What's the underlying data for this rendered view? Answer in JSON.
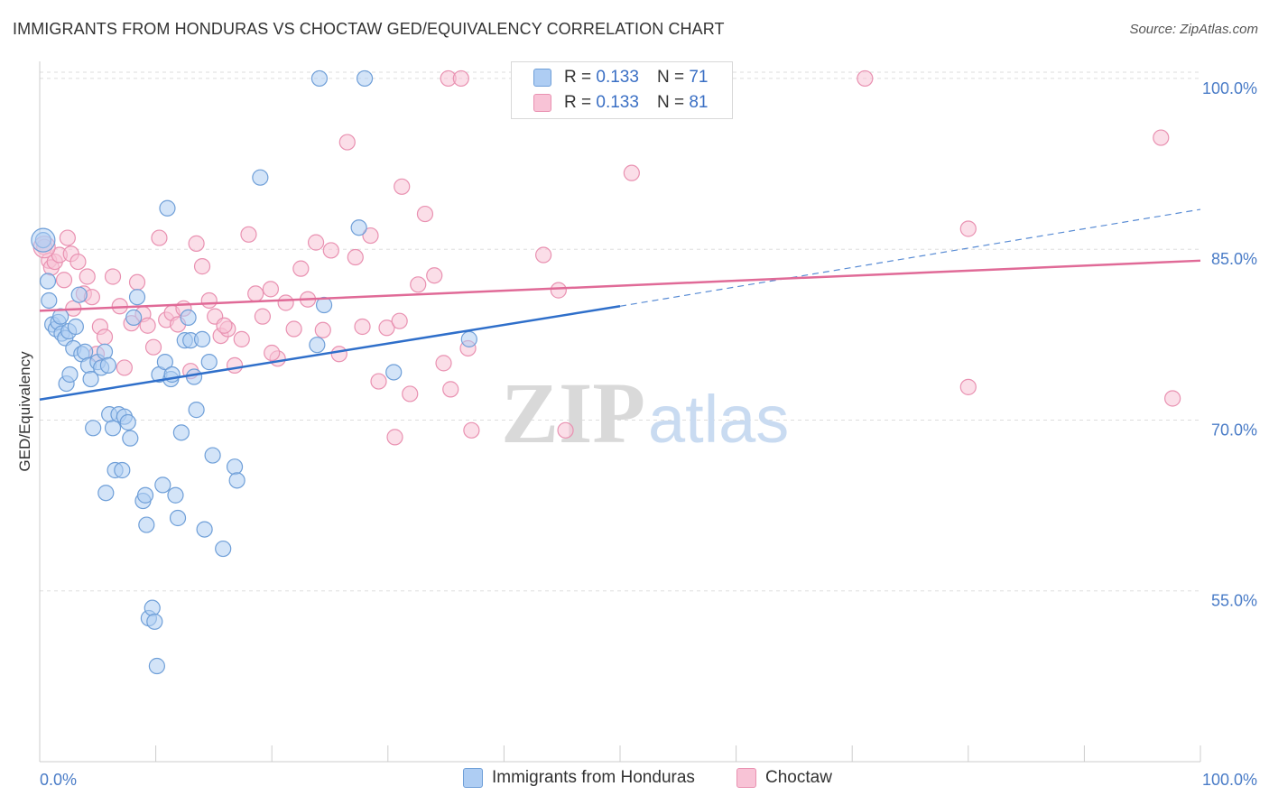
{
  "header": {
    "title": "IMMIGRANTS FROM HONDURAS VS CHOCTAW GED/EQUIVALENCY CORRELATION CHART",
    "source": "Source: ZipAtlas.com"
  },
  "legend_top": {
    "rows": [
      {
        "r_label": "R =",
        "r_value": "0.133",
        "n_label": "N =",
        "n_value": "71"
      },
      {
        "r_label": "R =",
        "r_value": "0.133",
        "n_label": "N =",
        "n_value": "81"
      }
    ]
  },
  "watermark": {
    "zip": "ZIP",
    "atlas": "atlas"
  },
  "colors": {
    "blue_fill": "#aecdf3",
    "blue_stroke": "#6f9fd8",
    "blue_line": "#2f6fca",
    "pink_fill": "#f8c3d6",
    "pink_stroke": "#e991b1",
    "pink_line": "#e06a97",
    "grid": "#dddddd",
    "tick_text": "#4a7cc7"
  },
  "chart_data": {
    "type": "scatter",
    "title": "IMMIGRANTS FROM HONDURAS VS CHOCTAW GED/EQUIVALENCY CORRELATION CHART",
    "xlabel": "",
    "ylabel": "GED/Equivalency",
    "xlim": [
      0,
      100
    ],
    "ylim": [
      40,
      101.5
    ],
    "x_tick_labels": [
      "0.0%",
      "100.0%"
    ],
    "y_ticks": [
      100,
      85,
      70,
      55
    ],
    "y_tick_labels": [
      "100.0%",
      "85.0%",
      "70.0%",
      "55.0%"
    ],
    "legend": [
      "Immigrants from Honduras",
      "Choctaw"
    ],
    "series": [
      {
        "name": "Immigrants from Honduras",
        "R": 0.133,
        "N": 71,
        "trend": {
          "x": [
            0,
            50
          ],
          "y": [
            71.8,
            80.0
          ],
          "dashed_extension_to_x": 100,
          "dashed_y_end": 88.5
        },
        "points": [
          [
            0.3,
            85.8
          ],
          [
            0.7,
            82.2
          ],
          [
            0.8,
            80.5
          ],
          [
            1.1,
            78.4
          ],
          [
            1.4,
            78.0
          ],
          [
            1.6,
            78.6
          ],
          [
            1.8,
            79.1
          ],
          [
            1.9,
            77.6
          ],
          [
            2.2,
            77.2
          ],
          [
            2.5,
            77.8
          ],
          [
            2.3,
            73.2
          ],
          [
            2.6,
            74.0
          ],
          [
            2.9,
            76.3
          ],
          [
            3.1,
            78.2
          ],
          [
            3.4,
            81.0
          ],
          [
            3.6,
            75.8
          ],
          [
            3.9,
            76.0
          ],
          [
            4.2,
            74.8
          ],
          [
            4.4,
            73.6
          ],
          [
            4.6,
            69.3
          ],
          [
            5.0,
            75.1
          ],
          [
            5.3,
            74.6
          ],
          [
            5.6,
            76.0
          ],
          [
            5.9,
            74.8
          ],
          [
            6.0,
            70.5
          ],
          [
            6.3,
            69.3
          ],
          [
            6.5,
            65.6
          ],
          [
            6.8,
            70.5
          ],
          [
            7.1,
            65.6
          ],
          [
            7.3,
            70.3
          ],
          [
            7.6,
            69.8
          ],
          [
            7.8,
            68.4
          ],
          [
            5.7,
            63.6
          ],
          [
            8.1,
            79.0
          ],
          [
            8.4,
            80.8
          ],
          [
            8.9,
            62.9
          ],
          [
            9.1,
            63.4
          ],
          [
            9.2,
            60.8
          ],
          [
            9.4,
            52.6
          ],
          [
            9.7,
            53.5
          ],
          [
            9.9,
            52.3
          ],
          [
            10.1,
            48.4
          ],
          [
            10.3,
            74.0
          ],
          [
            10.6,
            64.3
          ],
          [
            10.8,
            75.1
          ],
          [
            11.0,
            88.6
          ],
          [
            11.3,
            73.6
          ],
          [
            11.7,
            63.4
          ],
          [
            11.9,
            61.4
          ],
          [
            12.2,
            68.9
          ],
          [
            12.5,
            77.0
          ],
          [
            12.8,
            79.0
          ],
          [
            13.0,
            77.0
          ],
          [
            13.3,
            73.8
          ],
          [
            13.5,
            70.9
          ],
          [
            14.0,
            77.1
          ],
          [
            14.2,
            60.4
          ],
          [
            14.6,
            75.1
          ],
          [
            14.9,
            66.9
          ],
          [
            15.8,
            58.7
          ],
          [
            16.8,
            65.9
          ],
          [
            17.0,
            64.7
          ],
          [
            19.0,
            91.3
          ],
          [
            24.1,
            100.0
          ],
          [
            24.5,
            80.1
          ],
          [
            23.9,
            76.6
          ],
          [
            27.5,
            86.9
          ],
          [
            28.0,
            100.0
          ],
          [
            37.0,
            77.1
          ],
          [
            30.5,
            74.2
          ],
          [
            11.4,
            74.0
          ]
        ]
      },
      {
        "name": "Choctaw",
        "R": 0.133,
        "N": 81,
        "trend": {
          "x": [
            0,
            100
          ],
          "y": [
            79.6,
            84.0
          ]
        },
        "points": [
          [
            0.4,
            85.2
          ],
          [
            0.8,
            84.0
          ],
          [
            1.0,
            83.4
          ],
          [
            1.3,
            83.9
          ],
          [
            1.7,
            84.5
          ],
          [
            2.1,
            82.3
          ],
          [
            2.4,
            86.0
          ],
          [
            2.7,
            84.6
          ],
          [
            2.9,
            79.8
          ],
          [
            3.3,
            83.9
          ],
          [
            3.8,
            81.1
          ],
          [
            4.1,
            82.6
          ],
          [
            4.5,
            80.8
          ],
          [
            4.9,
            75.8
          ],
          [
            5.2,
            78.2
          ],
          [
            5.6,
            77.3
          ],
          [
            6.3,
            82.6
          ],
          [
            6.9,
            80.0
          ],
          [
            7.3,
            74.6
          ],
          [
            7.9,
            78.5
          ],
          [
            8.4,
            82.1
          ],
          [
            8.9,
            79.3
          ],
          [
            9.3,
            78.3
          ],
          [
            9.8,
            76.4
          ],
          [
            10.3,
            86.0
          ],
          [
            10.9,
            78.8
          ],
          [
            11.4,
            79.4
          ],
          [
            11.9,
            78.4
          ],
          [
            12.4,
            79.8
          ],
          [
            13.0,
            74.3
          ],
          [
            13.5,
            85.5
          ],
          [
            14.0,
            83.5
          ],
          [
            14.6,
            80.5
          ],
          [
            15.1,
            79.1
          ],
          [
            15.6,
            77.4
          ],
          [
            16.2,
            78.0
          ],
          [
            16.8,
            74.8
          ],
          [
            17.4,
            77.1
          ],
          [
            18.0,
            86.3
          ],
          [
            18.6,
            81.1
          ],
          [
            19.2,
            79.1
          ],
          [
            19.9,
            81.5
          ],
          [
            20.5,
            75.4
          ],
          [
            21.2,
            80.3
          ],
          [
            21.9,
            78.0
          ],
          [
            22.5,
            83.3
          ],
          [
            23.1,
            80.6
          ],
          [
            23.8,
            85.6
          ],
          [
            24.4,
            77.9
          ],
          [
            25.1,
            84.9
          ],
          [
            25.8,
            75.8
          ],
          [
            26.5,
            94.4
          ],
          [
            27.2,
            84.3
          ],
          [
            27.8,
            78.2
          ],
          [
            28.5,
            86.2
          ],
          [
            29.2,
            73.4
          ],
          [
            29.9,
            78.1
          ],
          [
            30.6,
            68.5
          ],
          [
            31.2,
            90.5
          ],
          [
            31.9,
            72.3
          ],
          [
            32.6,
            81.9
          ],
          [
            33.2,
            88.1
          ],
          [
            34.0,
            82.7
          ],
          [
            35.2,
            100.0
          ],
          [
            36.3,
            100.0
          ],
          [
            36.9,
            76.3
          ],
          [
            35.4,
            72.7
          ],
          [
            37.2,
            69.1
          ],
          [
            43.4,
            84.5
          ],
          [
            44.7,
            81.4
          ],
          [
            45.3,
            69.1
          ],
          [
            51.0,
            91.7
          ],
          [
            71.1,
            100.0
          ],
          [
            80.0,
            86.8
          ],
          [
            96.6,
            94.8
          ],
          [
            80.0,
            72.9
          ],
          [
            97.6,
            71.9
          ],
          [
            34.8,
            75.0
          ],
          [
            31.0,
            78.7
          ],
          [
            20.0,
            75.9
          ],
          [
            15.9,
            78.3
          ]
        ]
      }
    ]
  }
}
